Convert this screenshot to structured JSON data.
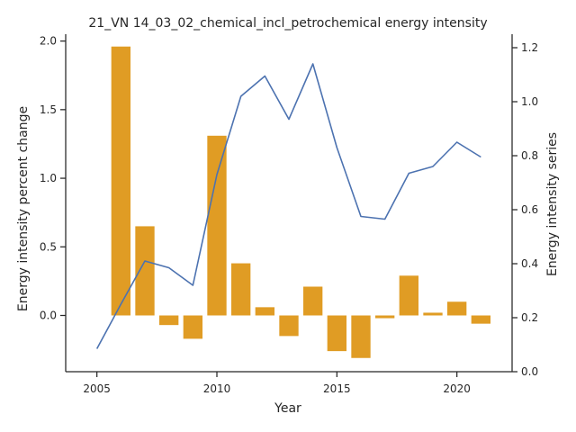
{
  "chart_data": {
    "type": "bar+line",
    "title": "21_VN 14_03_02_chemical_incl_petrochemical energy intensity",
    "xlabel": "Year",
    "ylabel_left": "Energy intensity percent change",
    "ylabel_right": "Energy intensity series",
    "xlim": [
      2003.7,
      2022.3
    ],
    "ylim_left": [
      -0.41,
      2.05
    ],
    "ylim_right": [
      0.0,
      1.25
    ],
    "x_ticks": [
      2005,
      2010,
      2015,
      2020
    ],
    "y_ticks_left": [
      0.0,
      0.5,
      1.0,
      1.5,
      2.0
    ],
    "y_ticks_left_labels": [
      "0.0",
      "0.5",
      "1.0",
      "1.5",
      "2.0"
    ],
    "y_ticks_right": [
      0.0,
      0.2,
      0.4,
      0.6,
      0.8,
      1.0,
      1.2
    ],
    "y_ticks_right_labels": [
      "0.0",
      "0.2",
      "0.4",
      "0.6",
      "0.8",
      "1.0",
      "1.2"
    ],
    "bar_series": {
      "axis": "left",
      "color": "#e09c24",
      "x": [
        2006,
        2007,
        2008,
        2009,
        2010,
        2011,
        2012,
        2013,
        2014,
        2015,
        2016,
        2017,
        2018,
        2019,
        2020,
        2021
      ],
      "values": [
        1.96,
        0.65,
        -0.07,
        -0.17,
        1.31,
        0.38,
        0.06,
        -0.15,
        0.21,
        -0.26,
        -0.31,
        -0.02,
        0.29,
        0.02,
        0.1,
        -0.06
      ]
    },
    "line_series": {
      "axis": "right",
      "color": "#4c72b0",
      "x": [
        2005,
        2006,
        2007,
        2008,
        2009,
        2010,
        2011,
        2012,
        2013,
        2014,
        2015,
        2016,
        2017,
        2018,
        2019,
        2020,
        2021
      ],
      "values": [
        0.085,
        0.25,
        0.41,
        0.385,
        0.32,
        0.73,
        1.02,
        1.095,
        0.935,
        1.14,
        0.83,
        0.575,
        0.565,
        0.735,
        0.76,
        0.85,
        0.795
      ]
    },
    "grid": false,
    "legend": "none"
  }
}
